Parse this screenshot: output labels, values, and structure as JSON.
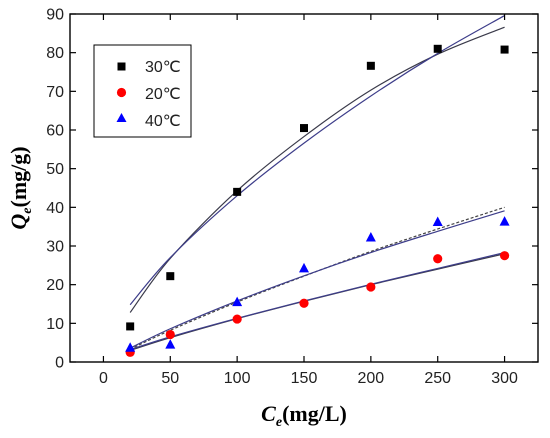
{
  "chart_data": {
    "type": "scatter",
    "xlabel": {
      "main": "C",
      "sub": "e",
      "unit": "(mg/L)"
    },
    "ylabel": {
      "main": "Q",
      "sub": "e",
      "unit": "(mg/g)"
    },
    "xlim": [
      -25,
      325
    ],
    "ylim": [
      0,
      90
    ],
    "xticks": [
      0,
      50,
      100,
      150,
      200,
      250,
      300
    ],
    "yticks": [
      0,
      10,
      20,
      30,
      40,
      50,
      60,
      70,
      80,
      90
    ],
    "grid": false,
    "legend_position": "top-left",
    "series": [
      {
        "name": "30℃",
        "marker": "square",
        "color": "#000000",
        "x": [
          20,
          50,
          100,
          150,
          200,
          250,
          300
        ],
        "y": [
          9.2,
          22.2,
          44.0,
          60.5,
          76.6,
          81.0,
          80.8
        ],
        "fits": [
          {
            "style": "solid",
            "color": "#3a3a4a",
            "x": [
              20,
              50,
              100,
              150,
              200,
              250,
              300
            ],
            "y": [
              12.8,
              26.8,
              44.3,
              58.3,
              70.3,
              79.6,
              86.6
            ]
          },
          {
            "style": "solid",
            "color": "#3d3d8a",
            "x": [
              20,
              50,
              100,
              150,
              200,
              250,
              300
            ],
            "y": [
              14.8,
              27.0,
              43.0,
              56.6,
              68.8,
              79.8,
              89.6
            ]
          }
        ]
      },
      {
        "name": "20℃",
        "marker": "circle",
        "color": "#ff0000",
        "x": [
          20,
          50,
          100,
          150,
          200,
          250,
          300
        ],
        "y": [
          2.5,
          7.1,
          11.1,
          15.2,
          19.4,
          26.7,
          27.5
        ],
        "fits": [
          {
            "style": "solid",
            "color": "#3a3a4a",
            "x": [
              20,
              50,
              100,
              150,
              200,
              250,
              300
            ],
            "y": [
              3.0,
              6.3,
              11.2,
              15.7,
              20.0,
              24.0,
              28.0
            ]
          },
          {
            "style": "solid",
            "color": "#3d3d8a",
            "x": [
              20,
              50,
              100,
              150,
              200,
              250,
              300
            ],
            "y": [
              3.2,
              6.5,
              11.3,
              15.8,
              20.1,
              24.2,
              28.3
            ]
          }
        ]
      },
      {
        "name": "40℃",
        "marker": "triangle",
        "color": "#0000ff",
        "x": [
          20,
          50,
          100,
          150,
          200,
          250,
          300
        ],
        "y": [
          3.7,
          4.5,
          15.5,
          24.2,
          32.2,
          36.2,
          36.3
        ],
        "fits": [
          {
            "style": "dashed",
            "color": "#444444",
            "x": [
              20,
              50,
              100,
              150,
              200,
              250,
              300
            ],
            "y": [
              3.3,
              8.2,
              15.5,
              22.2,
              28.6,
              34.4,
              40.0
            ]
          },
          {
            "style": "solid",
            "color": "#3d3d8a",
            "x": [
              20,
              50,
              100,
              150,
              200,
              250,
              300
            ],
            "y": [
              3.6,
              8.6,
              15.8,
              22.3,
              28.3,
              33.8,
              39.1
            ]
          }
        ]
      }
    ]
  }
}
